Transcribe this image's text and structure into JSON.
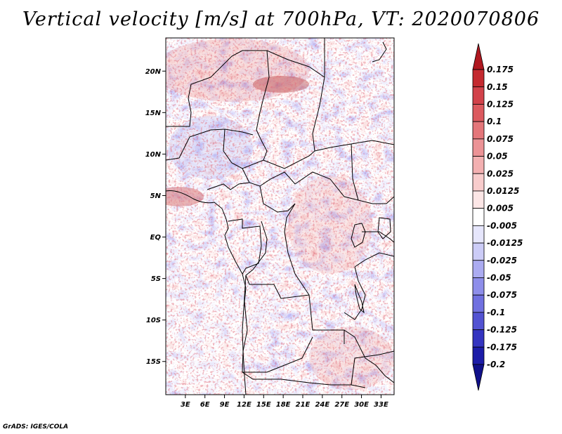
{
  "title": "Vertical velocity [m/s] at 700hPa, VT: 2020070806",
  "credit": "GrADS: IGES/COLA",
  "map": {
    "lat_range": [
      -19,
      24
    ],
    "lon_range": [
      0,
      35
    ],
    "lat_ticks": [
      {
        "value": 20,
        "label": "20N"
      },
      {
        "value": 15,
        "label": "15N"
      },
      {
        "value": 10,
        "label": "10N"
      },
      {
        "value": 5,
        "label": "5N"
      },
      {
        "value": 0,
        "label": "EQ"
      },
      {
        "value": -5,
        "label": "5S"
      },
      {
        "value": -10,
        "label": "10S"
      },
      {
        "value": -15,
        "label": "15S"
      }
    ],
    "lon_ticks": [
      {
        "value": 3,
        "label": "3E"
      },
      {
        "value": 6,
        "label": "6E"
      },
      {
        "value": 9,
        "label": "9E"
      },
      {
        "value": 12,
        "label": "12E"
      },
      {
        "value": 15,
        "label": "15E"
      },
      {
        "value": 18,
        "label": "18E"
      },
      {
        "value": 21,
        "label": "21E"
      },
      {
        "value": 24,
        "label": "24E"
      },
      {
        "value": 27,
        "label": "27E"
      },
      {
        "value": 30,
        "label": "30E"
      },
      {
        "value": 33,
        "label": "33E"
      }
    ]
  },
  "colorbar": {
    "levels": [
      "0.175",
      "0.15",
      "0.125",
      "0.1",
      "0.075",
      "0.05",
      "0.025",
      "0.0125",
      "0.005",
      "-0.005",
      "-0.0125",
      "-0.025",
      "-0.05",
      "-0.075",
      "-0.1",
      "-0.125",
      "-0.175",
      "-0.2"
    ],
    "colors": [
      "#b01820",
      "#c42a30",
      "#d2424a",
      "#dc5a5f",
      "#e4767a",
      "#ec9396",
      "#f3b0b1",
      "#f8cccc",
      "#fce6e6",
      "#ffffff",
      "#e6e6fc",
      "#ccccf7",
      "#ababf1",
      "#8e8eea",
      "#7070e0",
      "#5252d2",
      "#3434c0",
      "#1c1ca8",
      "#10108a"
    ]
  }
}
